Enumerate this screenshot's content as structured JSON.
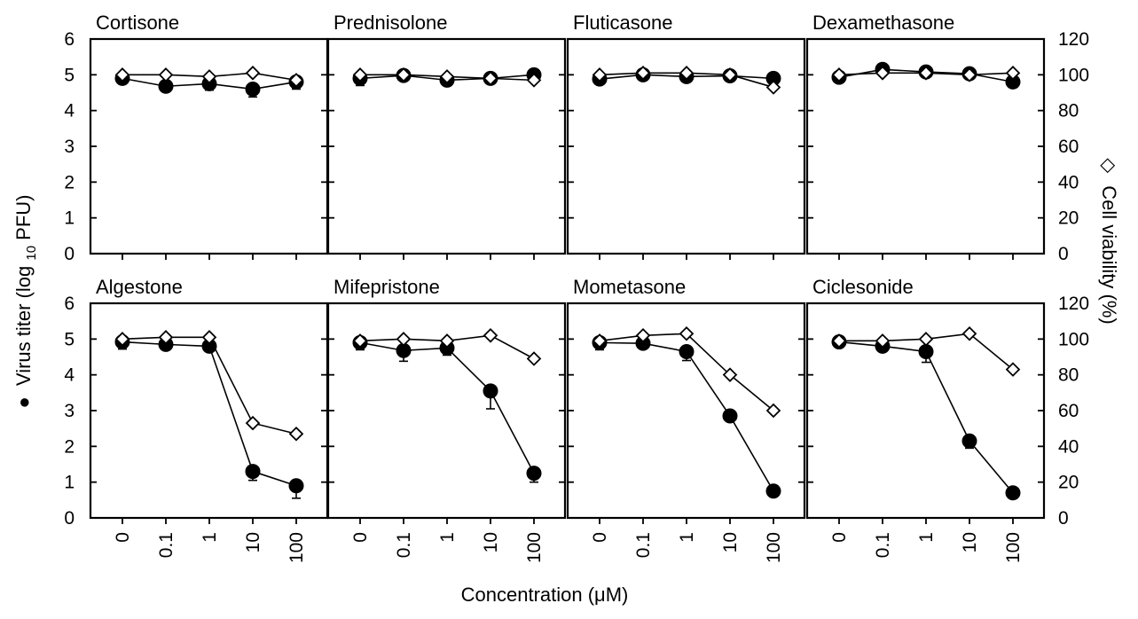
{
  "chart_data": {
    "type": "line",
    "x_categories": [
      "0",
      "0.1",
      "1",
      "10",
      "100"
    ],
    "xlabel": "Concentration (μM)",
    "ylabel_left": {
      "prefix": "Virus titer (log",
      "subscript": "10",
      "suffix": " PFU)"
    },
    "ylabel_right": "Cell viability (%)",
    "y_left_lim": [
      0,
      6
    ],
    "y_left_ticks": [
      "0",
      "1",
      "2",
      "3",
      "4",
      "5",
      "6"
    ],
    "y_right_lim": [
      0,
      120
    ],
    "y_right_ticks": [
      "0",
      "20",
      "40",
      "60",
      "80",
      "100",
      "120"
    ],
    "legend": {
      "virus_symbol": "●",
      "cell_symbol": "◇"
    },
    "grid": false,
    "panels": [
      {
        "title": "Cortisone",
        "virus_titer": [
          4.9,
          4.68,
          4.75,
          4.6,
          4.8
        ],
        "virus_error": [
          0.15,
          0.12,
          0.18,
          0.22,
          0.2
        ],
        "cell_viability": [
          100,
          100,
          99,
          101,
          97
        ]
      },
      {
        "title": "Prednisolone",
        "virus_titer": [
          4.9,
          4.98,
          4.85,
          4.9,
          5.0
        ],
        "virus_error": [
          0.2,
          0.15,
          0.1,
          0.1,
          0.1
        ],
        "cell_viability": [
          100,
          100,
          99,
          98,
          97
        ]
      },
      {
        "title": "Fluticasone",
        "virus_titer": [
          4.88,
          5.0,
          4.95,
          4.97,
          4.9
        ],
        "virus_error": [
          0.1,
          0.08,
          0.08,
          0.1,
          0.1
        ],
        "cell_viability": [
          100,
          101,
          101,
          100,
          93
        ]
      },
      {
        "title": "Dexamethasone",
        "virus_titer": [
          4.93,
          5.15,
          5.08,
          5.03,
          4.8
        ],
        "virus_error": [
          0.08,
          0.08,
          0.08,
          0.08,
          0.08
        ],
        "cell_viability": [
          100,
          101,
          101,
          100,
          101
        ]
      },
      {
        "title": "Algestone",
        "virus_titer": [
          4.92,
          4.85,
          4.8,
          1.3,
          0.9
        ],
        "virus_error": [
          0.2,
          0.1,
          0.1,
          0.25,
          0.35
        ],
        "cell_viability": [
          100,
          101,
          101,
          53,
          47
        ]
      },
      {
        "title": "Mifepristone",
        "virus_titer": [
          4.9,
          4.68,
          4.75,
          3.55,
          1.25
        ],
        "virus_error": [
          0.2,
          0.3,
          0.2,
          0.5,
          0.25
        ],
        "cell_viability": [
          99,
          100,
          99,
          102,
          89
        ]
      },
      {
        "title": "Mometasone",
        "virus_titer": [
          4.9,
          4.88,
          4.65,
          2.85,
          0.75
        ],
        "virus_error": [
          0.2,
          0.1,
          0.25,
          0.1,
          0.15
        ],
        "cell_viability": [
          99,
          102,
          103,
          80,
          60
        ]
      },
      {
        "title": "Ciclesonide",
        "virus_titer": [
          4.92,
          4.8,
          4.65,
          2.15,
          0.7
        ],
        "virus_error": [
          0.15,
          0.1,
          0.3,
          0.2,
          0.1
        ],
        "cell_viability": [
          99,
          99,
          100,
          103,
          83
        ]
      }
    ]
  }
}
